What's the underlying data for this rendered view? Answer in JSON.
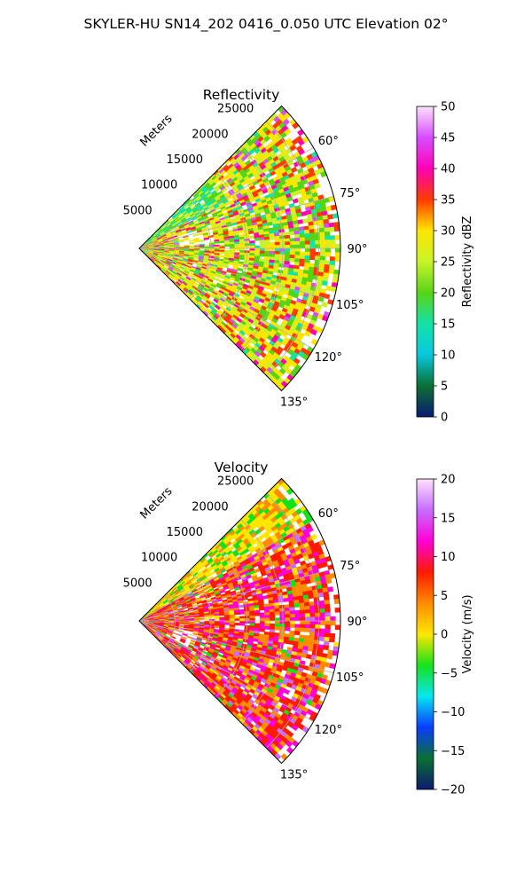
{
  "suptitle": "SKYLER-HU  SN14_202  0416_0.050 UTC Elevation 02°",
  "chart_data": [
    {
      "type": "heatmap",
      "subtype": "polar-sector",
      "title": "Reflectivity",
      "radial_label": "Meters",
      "radial_ticks": [
        "5000",
        "10000",
        "15000",
        "20000",
        "25000"
      ],
      "angle_ticks": [
        "60°",
        "75°",
        "90°",
        "105°",
        "120°",
        "135°"
      ],
      "angle_tick_values": [
        60,
        75,
        90,
        105,
        120,
        135
      ],
      "sector_deg": [
        45,
        135
      ],
      "rmax": 28000,
      "grid": true,
      "colorbar": {
        "label": "Reflectivity dBZ",
        "ticks": [
          "0",
          "5",
          "10",
          "15",
          "20",
          "25",
          "30",
          "35",
          "40",
          "45",
          "50"
        ],
        "range": [
          0,
          50
        ]
      },
      "colors": {
        "c0": "#0b1a6e",
        "c5": "#0b6f34",
        "c10": "#08c8e0",
        "c15": "#15e2a6",
        "c20": "#57d417",
        "c25": "#c8f32a",
        "c30": "#ffe600",
        "c35": "#ff3a00",
        "c40": "#ff00b6",
        "c45": "#d84cff",
        "c50": "#fde2fb"
      }
    },
    {
      "type": "heatmap",
      "subtype": "polar-sector",
      "title": "Velocity",
      "radial_label": "Meters",
      "radial_ticks": [
        "5000",
        "10000",
        "15000",
        "20000",
        "25000"
      ],
      "angle_ticks": [
        "60°",
        "75°",
        "90°",
        "105°",
        "120°",
        "135°"
      ],
      "angle_tick_values": [
        60,
        75,
        90,
        105,
        120,
        135
      ],
      "sector_deg": [
        45,
        135
      ],
      "rmax": 28000,
      "grid": true,
      "colorbar": {
        "label": "Velocity (m/s)",
        "ticks": [
          "−20",
          "−15",
          "−10",
          "−5",
          "0",
          "5",
          "10",
          "15",
          "20"
        ],
        "range": [
          -20,
          20
        ]
      },
      "colors": {
        "cm20": "#0b1a6e",
        "cm15": "#0b6f34",
        "cm12": "#0a3cff",
        "cm10": "#08e6f0",
        "cm5": "#15e21a",
        "c0": "#ffe600",
        "c5": "#ff8c00",
        "c10": "#ff1a00",
        "c15": "#ff00d8",
        "c18": "#c76cff",
        "c20": "#fde2fb"
      }
    }
  ]
}
